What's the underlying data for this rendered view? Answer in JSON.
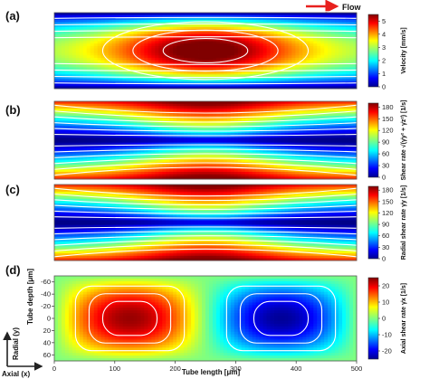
{
  "chart_data": [
    {
      "panel": "(a)",
      "type": "heatmap",
      "field": "poiseuille",
      "vmin": 0,
      "vmax": 5.5,
      "colorbar": {
        "label": "Velocity [mm/s]",
        "ticks": [
          0,
          1,
          2,
          3,
          4,
          5
        ]
      }
    },
    {
      "panel": "(b)",
      "type": "heatmap",
      "field": "wall_shear",
      "vmin": 0,
      "vmax": 190,
      "colorbar": {
        "label": "Shear rate √(γ̇y² + γ̇z²) [1/s]",
        "ticks": [
          0,
          30,
          60,
          90,
          120,
          150,
          180
        ]
      }
    },
    {
      "panel": "(c)",
      "type": "heatmap",
      "field": "wall_shear",
      "vmin": 0,
      "vmax": 190,
      "colorbar": {
        "label": "Radial shear rate γ̇y [1/s]",
        "ticks": [
          0,
          30,
          60,
          90,
          120,
          150,
          180
        ]
      }
    },
    {
      "panel": "(d)",
      "type": "heatmap",
      "field": "axial_shear",
      "vmin": -25,
      "vmax": 25,
      "xlabel": "Tube length [μm]",
      "ylabel": "Tube depth [μm]",
      "xlim": [
        0,
        500
      ],
      "ylim": [
        -70,
        70
      ],
      "xticks": [
        0,
        100,
        200,
        300,
        400,
        500
      ],
      "yticks": [
        -60,
        -40,
        -20,
        0,
        20,
        40,
        60
      ],
      "colorbar": {
        "label": "Axial shear rate γ̇x [1/s]",
        "ticks": [
          -20,
          -10,
          0,
          10,
          20
        ]
      }
    }
  ],
  "annotations": {
    "flow": "Flow",
    "radial": "Radial (y)",
    "axial": "Axial (x)"
  },
  "colors": {
    "flow_arrow": "#e8201e",
    "contour": "#ffffff"
  }
}
